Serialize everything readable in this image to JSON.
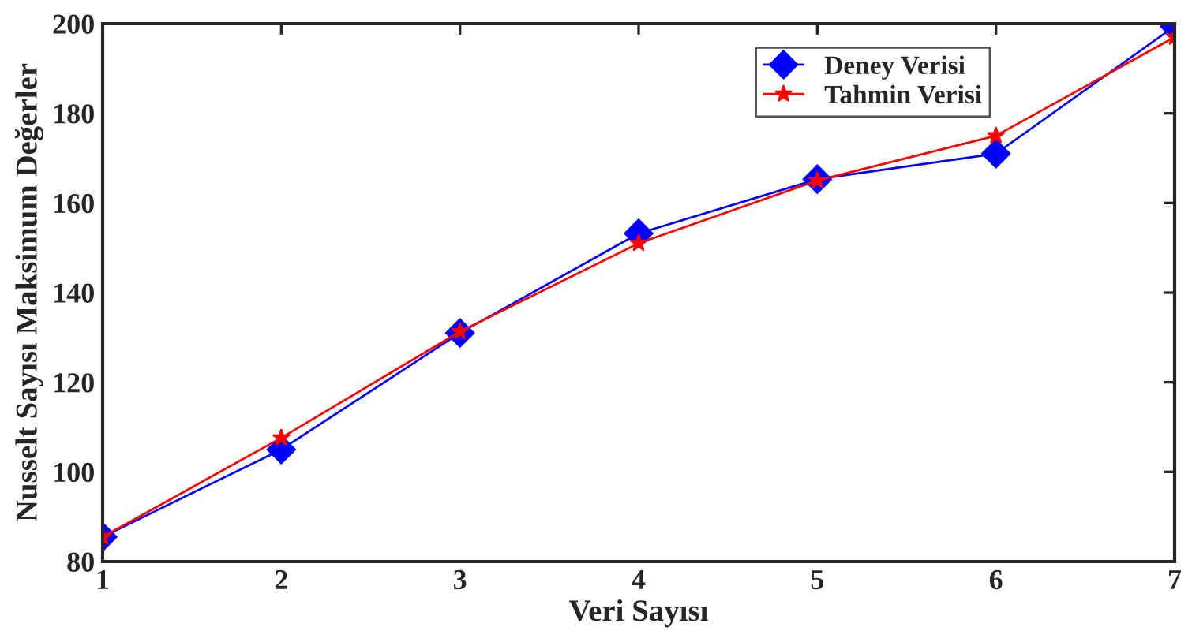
{
  "chart_data": {
    "type": "line",
    "xlabel": "Veri Sayısı",
    "ylabel": "Nusselt Sayısı Maksimum Değerler",
    "x": [
      1,
      2,
      3,
      4,
      5,
      6,
      7
    ],
    "series": [
      {
        "name": "Deney Verisi",
        "color": "#0000ff",
        "marker": "diamond",
        "values": [
          85.5,
          105,
          131,
          153.2,
          165.3,
          171,
          199.4
        ]
      },
      {
        "name": "Tahmin Verisi",
        "color": "#ff0000",
        "marker": "star",
        "values": [
          85.5,
          107.6,
          131.3,
          151,
          165,
          175,
          197
        ]
      }
    ],
    "xlim": [
      1,
      7
    ],
    "xticks": [
      1,
      2,
      3,
      4,
      5,
      6,
      7
    ],
    "ylim": [
      80,
      200
    ],
    "yticks": [
      80,
      100,
      120,
      140,
      160,
      180,
      200
    ],
    "grid": false,
    "legend": "top right",
    "line_style": "solid"
  }
}
